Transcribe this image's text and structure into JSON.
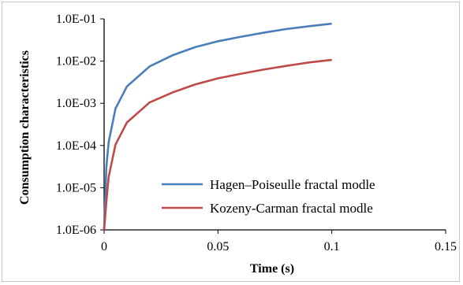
{
  "chart_data": {
    "type": "line",
    "title": "",
    "xlabel": "Time (s)",
    "ylabel": "Consumption characteristics",
    "x_ticks": [
      "0",
      "0.05",
      "0.1",
      "0.15"
    ],
    "y_ticks": [
      "1.0E-06",
      "1.0E-05",
      "1.0E-04",
      "1.0E-03",
      "1.0E-02",
      "1.0E-01"
    ],
    "xlim": [
      0,
      0.15
    ],
    "ylim": [
      1e-06,
      0.1
    ],
    "y_scale": "log",
    "grid": false,
    "legend_position": "lower-right",
    "series": [
      {
        "name": "Hagen–Poiseulle fractal modle",
        "color": "#4a7ebb",
        "x": [
          0.0,
          0.001,
          0.002,
          0.005,
          0.01,
          0.02,
          0.03,
          0.04,
          0.05,
          0.06,
          0.07,
          0.08,
          0.09,
          0.1
        ],
        "y": [
          1e-06,
          3.2e-05,
          0.00012,
          0.00075,
          0.0025,
          0.0075,
          0.0137,
          0.0214,
          0.0295,
          0.0376,
          0.047,
          0.0575,
          0.067,
          0.077
        ]
      },
      {
        "name": "Kozeny-Carman fractal modle",
        "color": "#be4b48",
        "x": [
          0.0,
          0.001,
          0.002,
          0.005,
          0.01,
          0.02,
          0.03,
          0.04,
          0.05,
          0.06,
          0.07,
          0.08,
          0.09,
          0.1
        ],
        "y": [
          1e-06,
          4.8e-06,
          1.8e-05,
          0.000105,
          0.00035,
          0.00105,
          0.0018,
          0.0028,
          0.0039,
          0.005,
          0.0063,
          0.0077,
          0.0093,
          0.0107
        ]
      }
    ]
  }
}
